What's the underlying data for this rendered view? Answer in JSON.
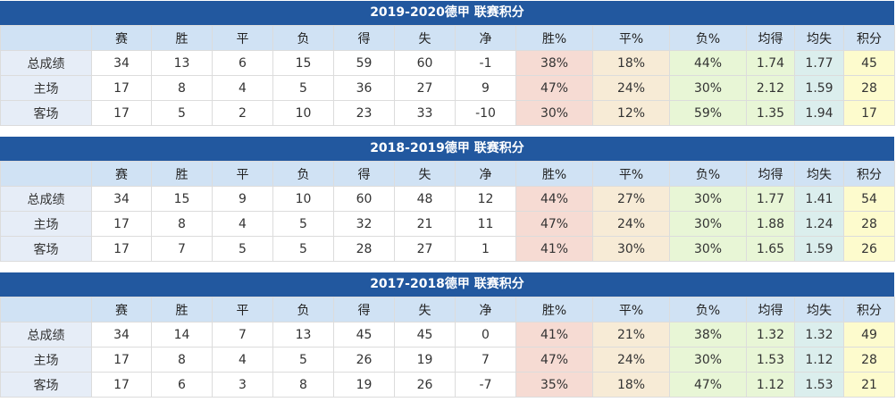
{
  "columns": [
    "",
    "赛",
    "胜",
    "平",
    "负",
    "得",
    "失",
    "净",
    "胜%",
    "平%",
    "负%",
    "均得",
    "均失",
    "积分"
  ],
  "tables": [
    {
      "title": "2019-2020德甲 联赛积分",
      "rows": [
        [
          "总成绩",
          "34",
          "13",
          "6",
          "15",
          "59",
          "60",
          "-1",
          "38%",
          "18%",
          "44%",
          "1.74",
          "1.77",
          "45"
        ],
        [
          "主场",
          "17",
          "8",
          "4",
          "5",
          "36",
          "27",
          "9",
          "47%",
          "24%",
          "30%",
          "2.12",
          "1.59",
          "28"
        ],
        [
          "客场",
          "17",
          "5",
          "2",
          "10",
          "23",
          "33",
          "-10",
          "30%",
          "12%",
          "59%",
          "1.35",
          "1.94",
          "17"
        ]
      ]
    },
    {
      "title": "2018-2019德甲 联赛积分",
      "rows": [
        [
          "总成绩",
          "34",
          "15",
          "9",
          "10",
          "60",
          "48",
          "12",
          "44%",
          "27%",
          "30%",
          "1.77",
          "1.41",
          "54"
        ],
        [
          "主场",
          "17",
          "8",
          "4",
          "5",
          "32",
          "21",
          "11",
          "47%",
          "24%",
          "30%",
          "1.88",
          "1.24",
          "28"
        ],
        [
          "客场",
          "17",
          "7",
          "5",
          "5",
          "28",
          "27",
          "1",
          "41%",
          "30%",
          "30%",
          "1.65",
          "1.59",
          "26"
        ]
      ]
    },
    {
      "title": "2017-2018德甲 联赛积分",
      "rows": [
        [
          "总成绩",
          "34",
          "14",
          "7",
          "13",
          "45",
          "45",
          "0",
          "41%",
          "21%",
          "38%",
          "1.32",
          "1.32",
          "49"
        ],
        [
          "主场",
          "17",
          "8",
          "4",
          "5",
          "26",
          "19",
          "7",
          "47%",
          "24%",
          "30%",
          "1.53",
          "1.12",
          "28"
        ],
        [
          "客场",
          "17",
          "6",
          "3",
          "8",
          "19",
          "26",
          "-7",
          "35%",
          "18%",
          "47%",
          "1.12",
          "1.53",
          "21"
        ]
      ]
    }
  ]
}
